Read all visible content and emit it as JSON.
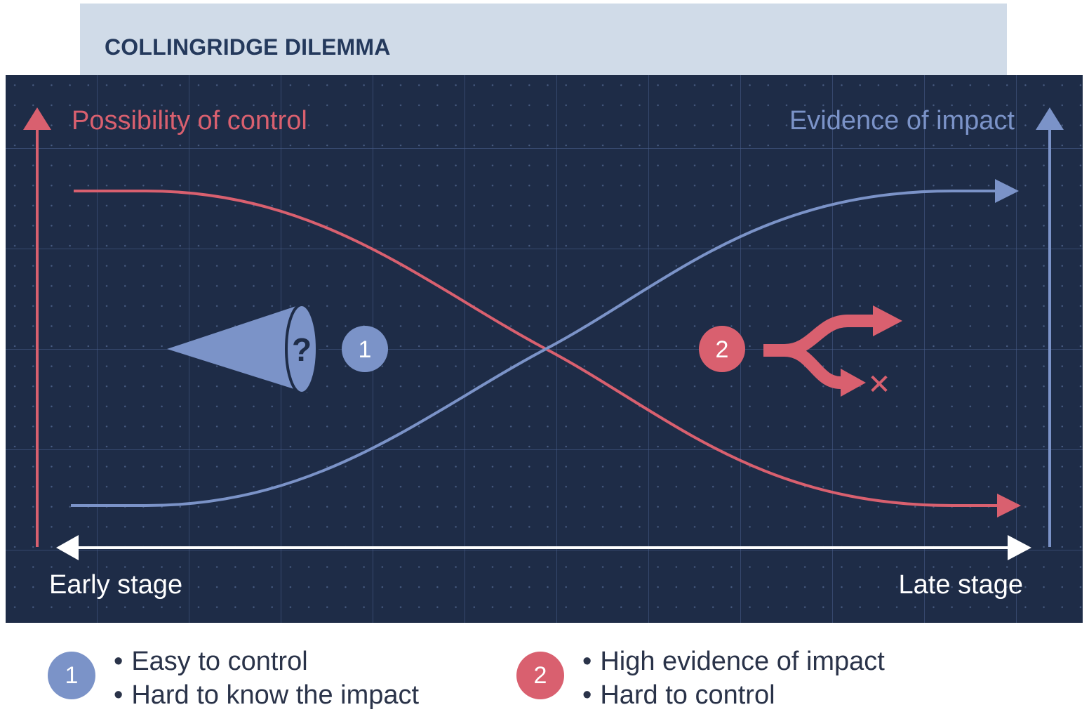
{
  "title": "COLLINGRIDGE DILEMMA",
  "colors": {
    "control": "#d9606f",
    "impact": "#7b93c8",
    "background": "#1e2c47",
    "title_bar": "#d0dbe8",
    "title_text": "#24395c"
  },
  "diagram": {
    "left_axis_label": "Possibility of control",
    "right_axis_label": "Evidence of impact",
    "timeline_start_label": "Early stage",
    "timeline_end_label": "Late stage",
    "cone_icon_glyph": "?",
    "marker_1": "1",
    "marker_2": "2",
    "reject_icon_glyph": "✕"
  },
  "legend": [
    {
      "number": "1",
      "lines": [
        "Easy to control",
        "Hard to know the impact"
      ]
    },
    {
      "number": "2",
      "lines": [
        "High evidence of impact",
        "Hard to control"
      ]
    }
  ],
  "bullet": "•"
}
